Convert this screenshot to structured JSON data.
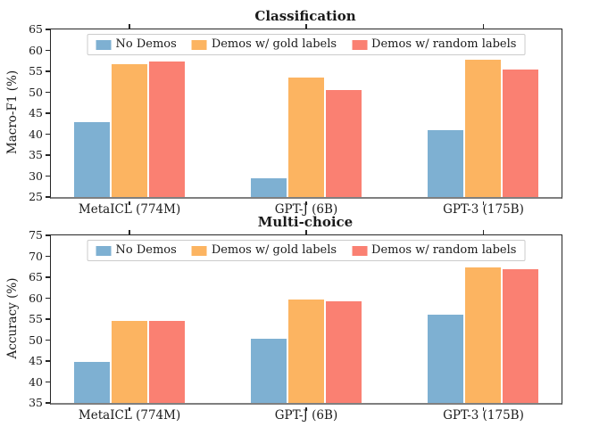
{
  "figure": {
    "palette": {
      "no_demos": "#7eb0d2",
      "gold_labels": "#fcb461",
      "random_labels": "#fa8072",
      "axis": "#262626",
      "bottom_spine": "#7f7f7f",
      "legend_border": "#cccccc"
    }
  },
  "chart_data": [
    {
      "type": "bar",
      "title": "Classification",
      "xlabel": "",
      "ylabel": "Macro-F1 (%)",
      "ylim": [
        25,
        65
      ],
      "yticks": [
        25,
        30,
        35,
        40,
        45,
        50,
        55,
        60,
        65
      ],
      "categories": [
        "MetaICL (774M)",
        "GPT-J (6B)",
        "GPT-3 (175B)"
      ],
      "grid": false,
      "legend_position": "upper center",
      "series": [
        {
          "name": "No Demos",
          "color": "#7eb0d2",
          "values": [
            42.9,
            29.5,
            40.9
          ]
        },
        {
          "name": "Demos w/ gold labels",
          "color": "#fcb461",
          "values": [
            56.8,
            53.5,
            57.8
          ]
        },
        {
          "name": "Demos w/ random labels",
          "color": "#fa8072",
          "values": [
            57.3,
            50.6,
            55.4
          ]
        }
      ]
    },
    {
      "type": "bar",
      "title": "Multi-choice",
      "xlabel": "",
      "ylabel": "Accuracy (%)",
      "ylim": [
        35,
        75
      ],
      "yticks": [
        35,
        40,
        45,
        50,
        55,
        60,
        65,
        70,
        75
      ],
      "categories": [
        "MetaICL (774M)",
        "GPT-J (6B)",
        "GPT-3 (175B)"
      ],
      "grid": false,
      "legend_position": "upper center",
      "series": [
        {
          "name": "No Demos",
          "color": "#7eb0d2",
          "values": [
            44.8,
            50.4,
            56.0
          ]
        },
        {
          "name": "Demos w/ gold labels",
          "color": "#fcb461",
          "values": [
            54.6,
            59.6,
            67.3
          ]
        },
        {
          "name": "Demos w/ random labels",
          "color": "#fa8072",
          "values": [
            54.5,
            59.3,
            66.9
          ]
        }
      ]
    }
  ]
}
